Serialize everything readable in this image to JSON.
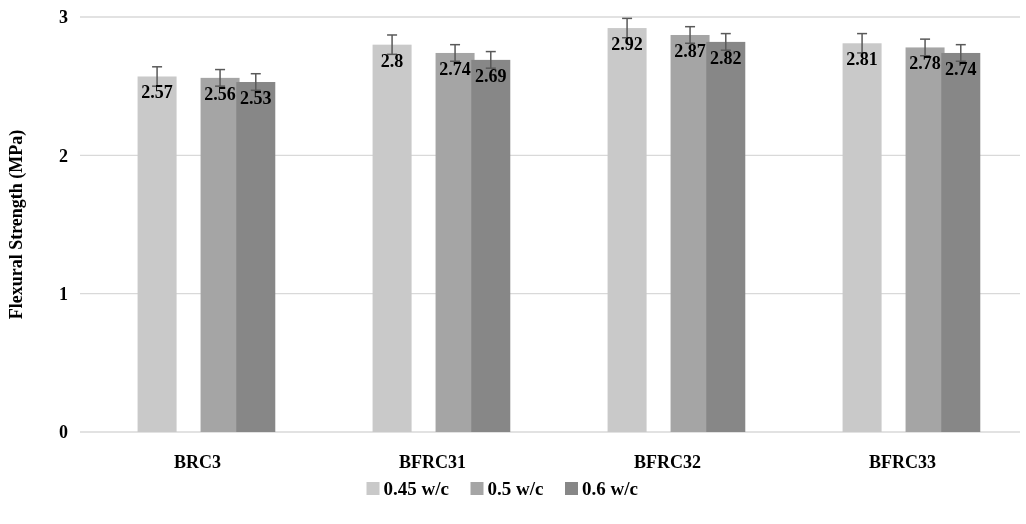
{
  "chart_data": {
    "type": "bar",
    "ylabel": "Flexural Strength (MPa)",
    "categories": [
      "BRC3",
      "BFRC31",
      "BFRC32",
      "BFRC33"
    ],
    "series": [
      {
        "name": "0.45 w/c",
        "color": "#c9c9c9",
        "values": [
          2.57,
          2.8,
          2.92,
          2.81
        ],
        "errors": [
          0.07,
          0.07,
          0.07,
          0.07
        ]
      },
      {
        "name": "0.5 w/c",
        "color": "#a5a5a5",
        "values": [
          2.56,
          2.74,
          2.87,
          2.78
        ],
        "errors": [
          0.06,
          0.06,
          0.06,
          0.06
        ]
      },
      {
        "name": "0.6 w/c",
        "color": "#878787",
        "values": [
          2.53,
          2.69,
          2.82,
          2.74
        ],
        "errors": [
          0.06,
          0.06,
          0.06,
          0.06
        ]
      }
    ],
    "ylim": [
      0,
      3
    ],
    "yticks": [
      0,
      1,
      2,
      3
    ],
    "grid": "y",
    "legend": "bottom",
    "data_labels": true
  }
}
